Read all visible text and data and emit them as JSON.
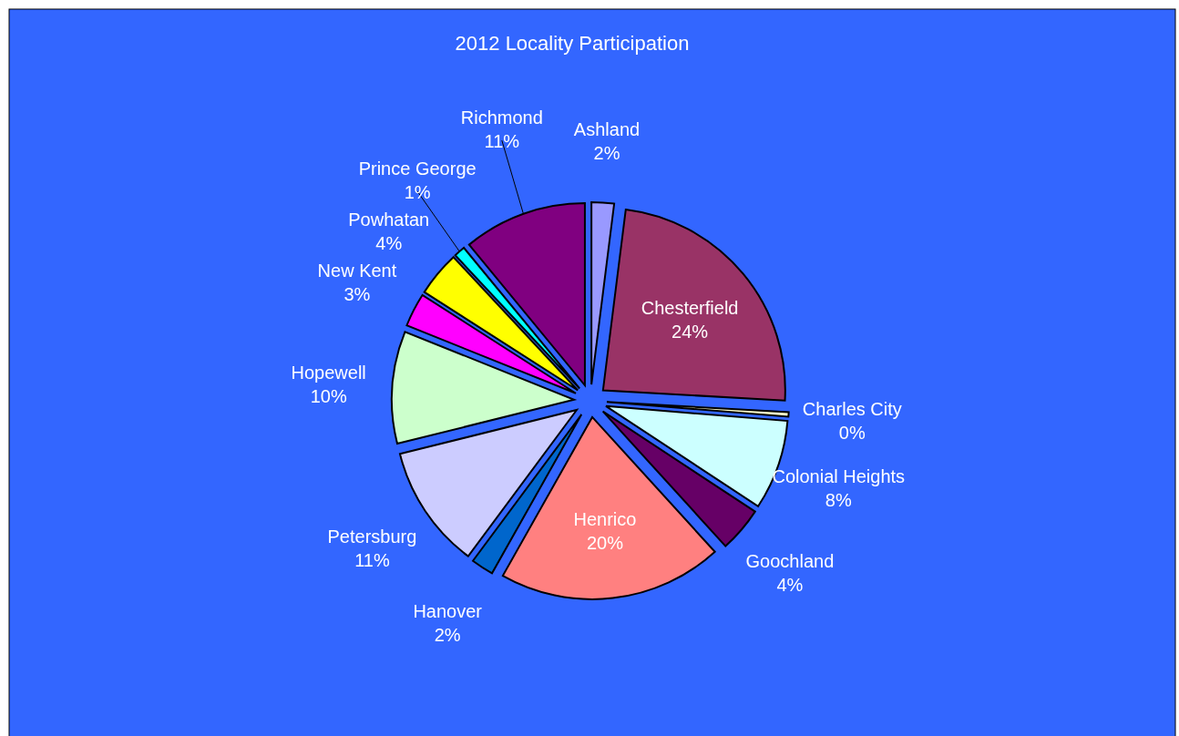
{
  "chart_data": {
    "type": "pie",
    "title": "2012 Locality Participation",
    "categories": [
      "Ashland",
      "Chesterfield",
      "Charles City",
      "Colonial Heights",
      "Goochland",
      "Henrico",
      "Hanover",
      "Petersburg",
      "Hopewell",
      "New Kent",
      "Powhatan",
      "Prince George",
      "Richmond"
    ],
    "values": [
      2,
      24,
      0.4,
      8,
      4,
      20,
      2,
      11,
      10,
      3,
      4,
      1,
      11
    ],
    "value_labels": [
      "2%",
      "24%",
      "0%",
      "8%",
      "4%",
      "20%",
      "2%",
      "11%",
      "10%",
      "3%",
      "4%",
      "1%",
      "11%"
    ],
    "colors": [
      "#9999ff",
      "#993366",
      "#ffffcc",
      "#ccffff",
      "#660066",
      "#ff8080",
      "#0066cc",
      "#ccccff",
      "#ccffcc",
      "#ff00ff",
      "#ffff00",
      "#00ffff",
      "#800080"
    ]
  }
}
